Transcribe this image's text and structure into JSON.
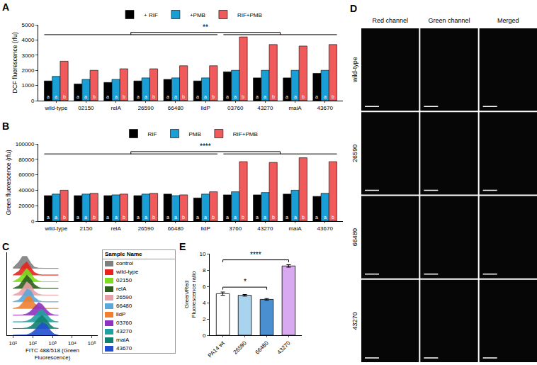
{
  "chart_data": [
    {
      "panel": "A",
      "type": "bar",
      "categories": [
        "wild-type",
        "02150",
        "relA",
        "26590",
        "66480",
        "lldP",
        "03760",
        "43270",
        "maiA",
        "43670"
      ],
      "y_label": "DCF fluorescence (rfu)",
      "ylim": [
        0,
        5000
      ],
      "yticks": [
        0,
        1000,
        2000,
        3000,
        4000,
        5000
      ],
      "legend": "top",
      "series": [
        {
          "name": "+ RIF",
          "color": "#000000",
          "values": [
            1300,
            1100,
            1200,
            1300,
            1400,
            1300,
            1900,
            1500,
            1500,
            1800
          ],
          "letters": [
            "a",
            "a",
            "a",
            "a",
            "a",
            "a",
            "a",
            "a",
            "a",
            "a"
          ]
        },
        {
          "name": "+PMB",
          "color": "#1a9ed6",
          "values": [
            1600,
            1400,
            1400,
            1500,
            1500,
            1500,
            2000,
            2000,
            2000,
            2000
          ],
          "letters": [
            "a",
            "a",
            "a",
            "a",
            "a",
            "a",
            "a",
            "a",
            "a",
            "a"
          ]
        },
        {
          "name": "RIF+PMB",
          "color": "#f05a5a",
          "values": [
            2600,
            2000,
            2100,
            2100,
            2300,
            2300,
            4200,
            3700,
            3600,
            3700
          ],
          "letters": [
            "b",
            "b",
            "b",
            "b",
            "b",
            "b",
            "b",
            "b",
            "b",
            "b"
          ]
        }
      ],
      "comparison": {
        "text": "**",
        "left": [
          "wild-type",
          "02150",
          "relA",
          "26590",
          "66480",
          "lldP"
        ],
        "right": [
          "03760",
          "43270",
          "maiA",
          "43670"
        ]
      }
    },
    {
      "panel": "B",
      "type": "bar",
      "categories": [
        "wild-type",
        "2150",
        "relA",
        "26590",
        "66480",
        "lldP",
        "3760",
        "43270",
        "maiA",
        "43670"
      ],
      "y_label": "Green fluorescence (rfu)",
      "ylim": [
        0,
        100000
      ],
      "yticks": [
        0,
        20000,
        40000,
        60000,
        80000,
        100000
      ],
      "legend": "top",
      "series": [
        {
          "name": "RIF",
          "color": "#000000",
          "values": [
            33000,
            33000,
            33000,
            33000,
            35000,
            30000,
            34000,
            34000,
            35000,
            32000
          ],
          "letters": [
            "a",
            "a",
            "a",
            "a",
            "a",
            "a",
            "a",
            "a",
            "a",
            "a"
          ]
        },
        {
          "name": "PMB",
          "color": "#1a9ed6",
          "values": [
            35000,
            35000,
            34000,
            35000,
            33000,
            35000,
            38000,
            37000,
            40000,
            36000
          ],
          "letters": [
            "a",
            "a",
            "a",
            "a",
            "a",
            "a",
            "a",
            "a",
            "a",
            "a"
          ]
        },
        {
          "name": "RIF+PMB",
          "color": "#f05a5a",
          "values": [
            40000,
            36000,
            35000,
            36000,
            34000,
            38000,
            77000,
            76000,
            82000,
            77000
          ],
          "letters": [
            "b",
            "b",
            "b",
            "b",
            "b",
            "b",
            "b",
            "b",
            "b",
            "b"
          ]
        }
      ],
      "comparison": {
        "text": "****",
        "left": [
          "wild-type",
          "2150",
          "relA",
          "26590",
          "66480",
          "lldP"
        ],
        "right": [
          "3760",
          "43270",
          "maiA",
          "43670"
        ]
      }
    },
    {
      "panel": "C",
      "type": "area",
      "x": [
        10,
        20,
        30,
        50,
        80,
        120,
        200,
        300,
        500,
        800,
        1200,
        2000
      ],
      "x_label": "FITC 488/518 (Green Fluorescence)",
      "log": "x",
      "xlim": [
        5,
        200000
      ],
      "xticks": [
        {
          "value": 10,
          "label": "10¹"
        },
        {
          "value": 100,
          "label": "10²"
        },
        {
          "value": 1000,
          "label": "10³"
        },
        {
          "value": 10000,
          "label": "10⁴"
        },
        {
          "value": 100000,
          "label": "10⁵"
        }
      ],
      "ylim": [
        0,
        6.2
      ],
      "tick_labels": "x",
      "legend": "right",
      "legend_title": "Sample Name",
      "series": [
        {
          "name": "control",
          "color": "#7f7f7f",
          "values": [
            0.05,
            0.5,
            0.9,
            0.9,
            0.4,
            0.1,
            0.02,
            0,
            0,
            0,
            0,
            0
          ]
        },
        {
          "name": "wild-type",
          "color": "#e8231f",
          "values": [
            0,
            0.3,
            0.7,
            1,
            0.55,
            0.2,
            0.05,
            0,
            0,
            0,
            0,
            0
          ]
        },
        {
          "name": "02150",
          "color": "#7ddc1f",
          "values": [
            0,
            0.25,
            0.6,
            1,
            0.65,
            0.25,
            0.06,
            0,
            0,
            0,
            0,
            0
          ]
        },
        {
          "name": "relA",
          "color": "#2e5e1e",
          "values": [
            0,
            0.2,
            0.55,
            1,
            0.7,
            0.3,
            0.08,
            0.01,
            0,
            0,
            0,
            0
          ]
        },
        {
          "name": "26590",
          "color": "#e8a0a8",
          "values": [
            0,
            0.2,
            0.5,
            1,
            0.75,
            0.3,
            0.08,
            0.01,
            0,
            0,
            0,
            0
          ]
        },
        {
          "name": "66480",
          "color": "#5aa7d8",
          "values": [
            0,
            0.15,
            0.45,
            0.95,
            0.85,
            0.35,
            0.1,
            0.02,
            0,
            0,
            0,
            0
          ]
        },
        {
          "name": "lldP",
          "color": "#f08030",
          "values": [
            0,
            0.12,
            0.4,
            0.9,
            0.9,
            0.4,
            0.12,
            0.03,
            0,
            0,
            0,
            0
          ]
        },
        {
          "name": "03760",
          "color": "#9030c0",
          "values": [
            0,
            0,
            0.02,
            0.1,
            0.3,
            0.6,
            0.95,
            0.8,
            0.4,
            0.12,
            0.03,
            0
          ]
        },
        {
          "name": "43270",
          "color": "#20a0a0",
          "values": [
            0,
            0,
            0.01,
            0.06,
            0.2,
            0.45,
            0.8,
            0.95,
            0.6,
            0.22,
            0.06,
            0.01
          ]
        },
        {
          "name": "maiA",
          "color": "#108070",
          "values": [
            0,
            0,
            0.01,
            0.05,
            0.18,
            0.42,
            0.8,
            1,
            0.65,
            0.25,
            0.07,
            0.01
          ]
        },
        {
          "name": "43670",
          "color": "#2050d0",
          "values": [
            0,
            0,
            0,
            0.04,
            0.15,
            0.35,
            0.7,
            0.95,
            0.8,
            0.35,
            0.1,
            0.02
          ]
        }
      ]
    },
    {
      "panel": "E",
      "type": "bar",
      "categories": [
        "PA14 wt",
        "26590",
        "66480",
        "43270"
      ],
      "values": [
        5.1,
        4.9,
        4.4,
        8.5
      ],
      "errors": [
        0.2,
        0.1,
        0.1,
        0.15
      ],
      "colors": [
        "#ffffff",
        "#a8d4f0",
        "#4a90d0",
        "#d8a8f0"
      ],
      "y_label": "Green/Red Fluorescence ratio",
      "ylim": [
        0,
        10
      ],
      "yticks": [
        0,
        2,
        4,
        6,
        8,
        10
      ],
      "significance": [
        {
          "from": "PA14 wt",
          "to": "66480",
          "text": "*"
        },
        {
          "from": "PA14 wt",
          "to": "43270",
          "text": "****"
        }
      ]
    }
  ],
  "image_grid": {
    "panel": "D",
    "columns": [
      "Red channel",
      "Green channel",
      "Merged"
    ],
    "rows": [
      "wild-type",
      "26590",
      "66480",
      "43270"
    ]
  }
}
